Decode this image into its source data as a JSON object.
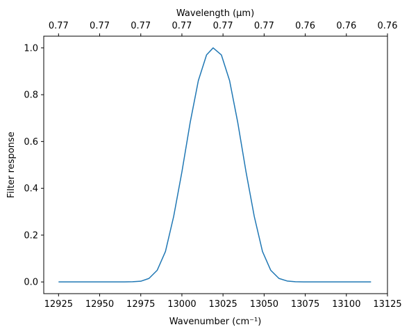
{
  "chart_data": {
    "type": "line",
    "xlabel": "Wavenumber (cm⁻¹)",
    "top_xlabel": "Wavelength (μm)",
    "ylabel": "Filter response",
    "xlim": [
      12916,
      13125
    ],
    "ylim": [
      -0.05,
      1.05
    ],
    "x_ticks": [
      12925,
      12950,
      12975,
      13000,
      13025,
      13050,
      13075,
      13100,
      13125
    ],
    "x_tick_labels": [
      "12925",
      "12950",
      "12975",
      "13000",
      "13025",
      "13050",
      "13075",
      "13100",
      "13125"
    ],
    "y_ticks": [
      0.0,
      0.2,
      0.4,
      0.6,
      0.8,
      1.0
    ],
    "y_tick_labels": [
      "0.0",
      "0.2",
      "0.4",
      "0.6",
      "0.8",
      "1.0"
    ],
    "top_x_ticks": [
      12925,
      12950,
      12975,
      13000,
      13025,
      13050,
      13075,
      13100,
      13125
    ],
    "top_x_tick_labels": [
      "0.77",
      "0.77",
      "0.77",
      "0.77",
      "0.77",
      "0.77",
      "0.76",
      "0.76",
      "0.76"
    ],
    "series": [
      {
        "color": "#1f77b4",
        "x": [
          12925,
          12935,
          12945,
          12955,
          12965,
          12970,
          12975,
          12980,
          12985,
          12990,
          12995,
          13000,
          13005,
          13010,
          13015,
          13019,
          13024,
          13029,
          13034,
          13039,
          13044,
          13049,
          13054,
          13059,
          13064,
          13069,
          13074,
          13084,
          13094,
          13104,
          13115
        ],
        "y": [
          0.0,
          0.0,
          0.0,
          0.0,
          0.0,
          0.001,
          0.003,
          0.015,
          0.05,
          0.13,
          0.28,
          0.47,
          0.68,
          0.86,
          0.97,
          1.0,
          0.97,
          0.86,
          0.68,
          0.47,
          0.28,
          0.13,
          0.05,
          0.015,
          0.004,
          0.001,
          0.0,
          0.0,
          0.0,
          0.0,
          0.0
        ]
      }
    ],
    "grid": false
  }
}
